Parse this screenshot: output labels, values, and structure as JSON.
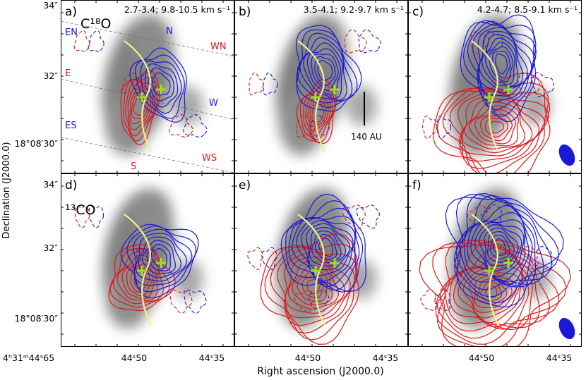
{
  "figure": {
    "xlabel": "Right ascension (J2000.0)",
    "ylabel": "Declination (J2000.0)"
  },
  "colors": {
    "blue": "#1a1ad6",
    "red": "#e01818",
    "yellow": "#f3f38a",
    "star": "#9be21e",
    "grey": "#555555",
    "frame": "#000000"
  },
  "rows": [
    {
      "molecule": "C<sup>18</sup>O",
      "label": "C18O"
    },
    {
      "molecule": "13CO",
      "label": "13CO"
    }
  ],
  "row_labels": [
    "C¹⁸O",
    "¹³CO"
  ],
  "panels": [
    {
      "id": "a",
      "letter": "a)",
      "velocity": "2.7-3.4; 9.8-10.5 km s⁻¹",
      "row": 0,
      "col": 0
    },
    {
      "id": "b",
      "letter": "b)",
      "velocity": "3.5-4.1; 9.2-9.7 km s⁻¹",
      "row": 0,
      "col": 1
    },
    {
      "id": "c",
      "letter": "c)",
      "velocity": "4.2-4.7; 8.5-9.1 km s⁻¹",
      "row": 0,
      "col": 2
    },
    {
      "id": "d",
      "letter": "d)",
      "velocity": "",
      "row": 1,
      "col": 0
    },
    {
      "id": "e",
      "letter": "e)",
      "velocity": "",
      "row": 1,
      "col": 1
    },
    {
      "id": "f",
      "letter": "f)",
      "velocity": "",
      "row": 1,
      "col": 2
    }
  ],
  "directions": [
    {
      "text": "EN",
      "color": "blue"
    },
    {
      "text": "N",
      "color": "blue"
    },
    {
      "text": "WN",
      "color": "red"
    },
    {
      "text": "E",
      "color": "red"
    },
    {
      "text": "W",
      "color": "blue"
    },
    {
      "text": "ES",
      "color": "blue"
    },
    {
      "text": "WS",
      "color": "red"
    },
    {
      "text": "S",
      "color": "red"
    }
  ],
  "scalebar": {
    "label": "140 AU"
  },
  "chart_data": {
    "type": "contour",
    "ytick_labels_top": [
      "34″",
      "32″",
      "18°08′30″"
    ],
    "ytick_labels_bottom": [
      "34″",
      "32″",
      "18°08′30″"
    ],
    "xtick_labels": [
      "4ʰ31ᵐ44ˢ65",
      "44ˢ50",
      "44ˢ35"
    ],
    "xtick_labels_first_panel_only": [
      "4ʰ31ᵐ44ˢ65"
    ],
    "xtick_labels_repeat": [
      "44ˢ50",
      "44ˢ35"
    ],
    "series": [
      {
        "name": "blueshifted",
        "color": "blue"
      },
      {
        "name": "redshifted",
        "color": "red"
      }
    ],
    "markers": [
      {
        "type": "cross",
        "count": 2,
        "color": "star"
      }
    ],
    "beam": {
      "panels": [
        "c",
        "f"
      ],
      "shape": "ellipse"
    }
  }
}
